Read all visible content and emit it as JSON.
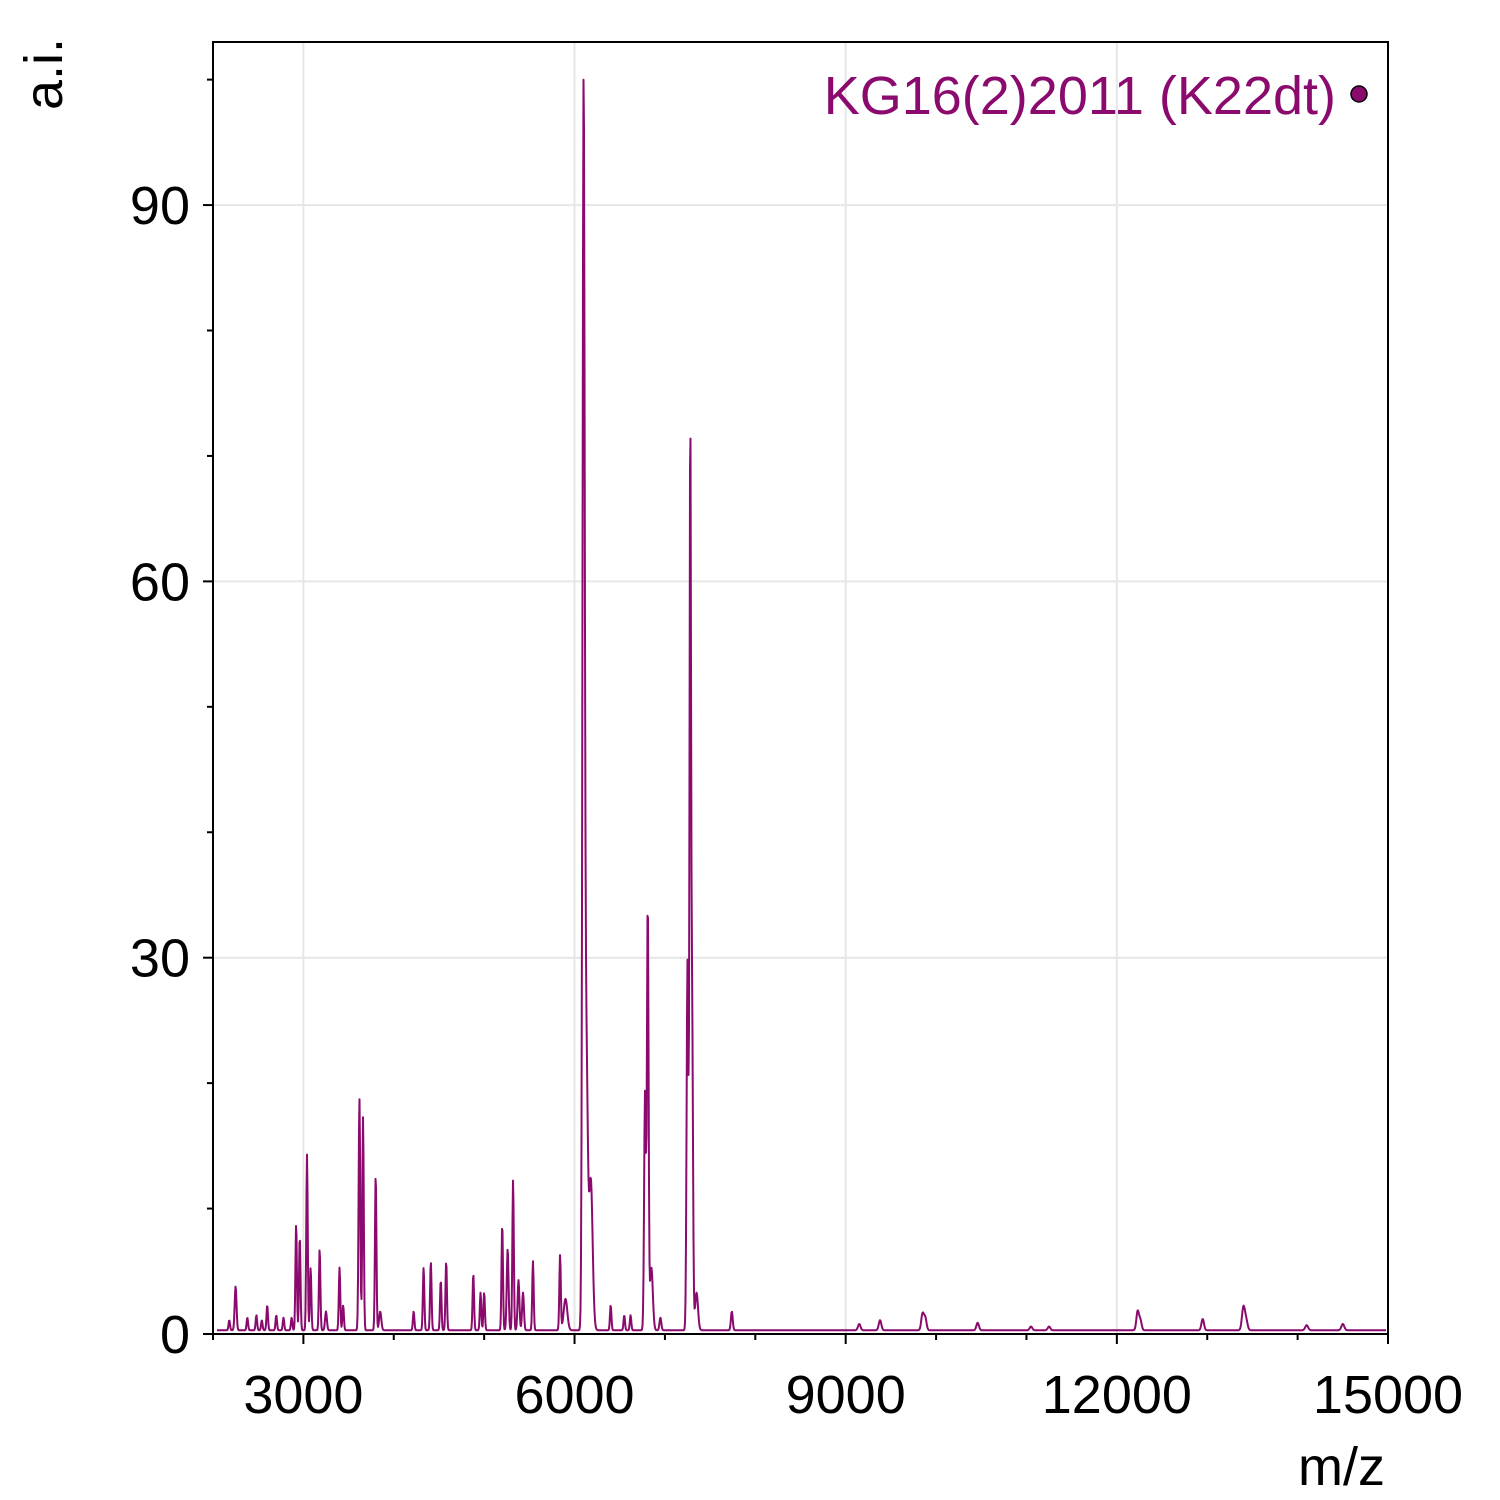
{
  "chart_data": {
    "type": "line",
    "title": "",
    "xlabel": "m/z",
    "ylabel": "a.i.",
    "xlim": [
      2000,
      15000
    ],
    "ylim": [
      0,
      103
    ],
    "x_ticks": [
      3000,
      6000,
      9000,
      12000,
      15000
    ],
    "x_tick_labels": [
      "3000",
      "6000",
      "9000",
      "12000",
      "15000"
    ],
    "x_minor_step": 1000,
    "y_ticks": [
      0,
      30,
      60,
      90
    ],
    "y_tick_labels": [
      "0",
      "30",
      "60",
      "90"
    ],
    "y_minor_step": 10,
    "grid": true,
    "legend_position": "top-right",
    "colors": {
      "series": "#8a0a6e",
      "grid": "#e6e6e6",
      "axis": "#000000"
    },
    "series": [
      {
        "name": "KG16(2)2011 (K22dt)",
        "baseline": 0.3,
        "peaks": [
          [
            2180,
            0.8,
            8
          ],
          [
            2250,
            3.5,
            10
          ],
          [
            2380,
            1.0,
            8
          ],
          [
            2480,
            1.2,
            8
          ],
          [
            2540,
            0.8,
            8
          ],
          [
            2600,
            2.0,
            8
          ],
          [
            2700,
            1.2,
            8
          ],
          [
            2780,
            1.0,
            8
          ],
          [
            2870,
            1.0,
            8
          ],
          [
            2920,
            8.5,
            8
          ],
          [
            2960,
            7.5,
            8
          ],
          [
            3040,
            14.0,
            8
          ],
          [
            3080,
            5.0,
            8
          ],
          [
            3180,
            6.5,
            8
          ],
          [
            3250,
            1.5,
            10
          ],
          [
            3400,
            5.0,
            8
          ],
          [
            3440,
            2.0,
            8
          ],
          [
            3620,
            18.5,
            9
          ],
          [
            3660,
            17.0,
            8
          ],
          [
            3800,
            12.5,
            8
          ],
          [
            3850,
            1.5,
            12
          ],
          [
            4220,
            1.5,
            8
          ],
          [
            4330,
            5.0,
            8
          ],
          [
            4410,
            5.5,
            8
          ],
          [
            4520,
            4.0,
            8
          ],
          [
            4580,
            5.5,
            8
          ],
          [
            4880,
            4.5,
            8
          ],
          [
            4960,
            3.0,
            8
          ],
          [
            5000,
            3.0,
            8
          ],
          [
            5200,
            8.5,
            8
          ],
          [
            5260,
            6.5,
            10
          ],
          [
            5320,
            12.0,
            8
          ],
          [
            5380,
            4.0,
            10
          ],
          [
            5430,
            3.0,
            10
          ],
          [
            5540,
            5.5,
            8
          ],
          [
            5840,
            6.0,
            8
          ],
          [
            5900,
            2.5,
            20
          ],
          [
            6100,
            96.5,
            12
          ],
          [
            6130,
            22.0,
            16
          ],
          [
            6180,
            12.0,
            20
          ],
          [
            6400,
            2.0,
            8
          ],
          [
            6550,
            1.2,
            8
          ],
          [
            6620,
            1.2,
            8
          ],
          [
            6780,
            19.0,
            10
          ],
          [
            6810,
            34.0,
            9
          ],
          [
            6850,
            5.0,
            16
          ],
          [
            6950,
            1.0,
            10
          ],
          [
            7250,
            29.5,
            10
          ],
          [
            7280,
            69.5,
            8
          ],
          [
            7300,
            26.0,
            10
          ],
          [
            7350,
            3.0,
            16
          ],
          [
            7740,
            1.5,
            10
          ],
          [
            9150,
            0.5,
            14
          ],
          [
            9380,
            0.8,
            14
          ],
          [
            9850,
            1.3,
            14
          ],
          [
            9880,
            1.0,
            14
          ],
          [
            10460,
            0.6,
            14
          ],
          [
            11050,
            0.3,
            14
          ],
          [
            11250,
            0.3,
            14
          ],
          [
            12230,
            1.5,
            14
          ],
          [
            12260,
            0.8,
            14
          ],
          [
            12950,
            0.9,
            14
          ],
          [
            13400,
            1.8,
            16
          ],
          [
            13430,
            0.8,
            16
          ],
          [
            14100,
            0.4,
            16
          ],
          [
            14500,
            0.5,
            16
          ]
        ]
      }
    ]
  }
}
